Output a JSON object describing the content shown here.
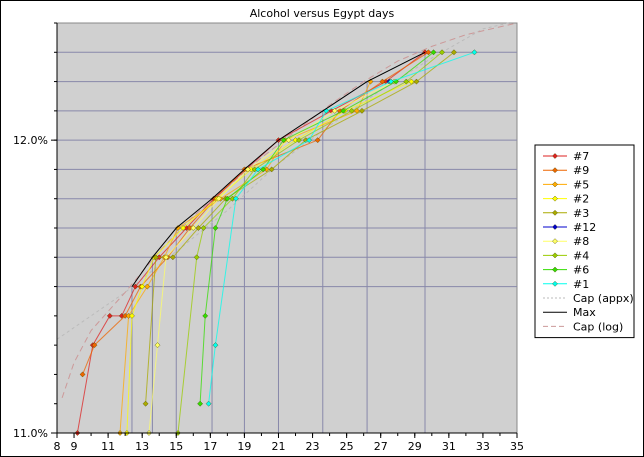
{
  "chart_data": {
    "type": "line",
    "title": "Alcohol versus Egypt days",
    "xlabel": "",
    "ylabel": "",
    "xlim": [
      8,
      35
    ],
    "ylim": [
      11.0,
      12.4
    ],
    "x_ticks": [
      {
        "v": 8,
        "label": "8"
      },
      {
        "v": 9,
        "label": "9"
      },
      {
        "v": 11,
        "label": "11"
      },
      {
        "v": 13,
        "label": "13"
      },
      {
        "v": 15,
        "label": "15"
      },
      {
        "v": 17,
        "label": "17"
      },
      {
        "v": 19,
        "label": "19"
      },
      {
        "v": 21,
        "label": "21"
      },
      {
        "v": 23,
        "label": "23"
      },
      {
        "v": 25,
        "label": "25"
      },
      {
        "v": 27,
        "label": "27"
      },
      {
        "v": 29,
        "label": "29"
      },
      {
        "v": 31,
        "label": "31"
      },
      {
        "v": 33,
        "label": "33"
      },
      {
        "v": 35,
        "label": "35"
      }
    ],
    "y_ticks": [
      {
        "v": 11.0,
        "label": "11.0%"
      },
      {
        "v": 12.0,
        "label": "12.0%"
      }
    ],
    "plot_background": "#d0d0d0",
    "grid": false,
    "legend_position": "right",
    "max_line": {
      "name": "Max",
      "color": "#000000",
      "points": [
        [
          12.4,
          11.5
        ],
        [
          13.6,
          11.6
        ],
        [
          15.0,
          11.7
        ],
        [
          17.1,
          11.8
        ],
        [
          19.0,
          11.9
        ],
        [
          21.0,
          12.0
        ],
        [
          23.6,
          12.1
        ],
        [
          26.2,
          12.2
        ],
        [
          29.6,
          12.3
        ]
      ]
    },
    "guide_lines": {
      "color": "#8888aa",
      "points": [
        [
          12.4,
          11.5
        ],
        [
          13.6,
          11.6
        ],
        [
          15.0,
          11.7
        ],
        [
          17.1,
          11.8
        ],
        [
          19.0,
          11.9
        ],
        [
          21.0,
          12.0
        ],
        [
          23.6,
          12.1
        ],
        [
          26.2,
          12.2
        ],
        [
          29.6,
          12.3
        ]
      ],
      "y_levels": [
        11.5,
        11.6,
        11.7,
        11.8,
        11.9,
        12.0,
        12.1,
        12.2,
        12.3
      ]
    },
    "cap_appx": {
      "name": "Cap (appx)",
      "color": "#bbbbbb",
      "points": [
        [
          8.0,
          11.32
        ],
        [
          12.0,
          11.48
        ],
        [
          15.0,
          11.62
        ],
        [
          18.0,
          11.76
        ],
        [
          21.0,
          11.92
        ],
        [
          24.0,
          12.05
        ],
        [
          27.0,
          12.17
        ],
        [
          30.0,
          12.28
        ],
        [
          33.0,
          12.38
        ],
        [
          34.5,
          12.43
        ]
      ]
    },
    "cap_log": {
      "name": "Cap (log)",
      "color": "#cc9999",
      "points": [
        [
          8.3,
          11.12
        ],
        [
          9.0,
          11.24
        ],
        [
          10.0,
          11.35
        ],
        [
          12.0,
          11.48
        ],
        [
          14.0,
          11.62
        ],
        [
          16.0,
          11.74
        ],
        [
          18.0,
          11.84
        ],
        [
          20.0,
          11.94
        ],
        [
          22.0,
          12.03
        ],
        [
          24.0,
          12.12
        ],
        [
          26.0,
          12.2
        ],
        [
          28.0,
          12.27
        ],
        [
          30.0,
          12.32
        ],
        [
          32.0,
          12.36
        ],
        [
          35.0,
          12.46
        ]
      ]
    },
    "series": [
      {
        "name": "#7",
        "color": "#dd2222",
        "marker": "diamond",
        "points": [
          [
            9.2,
            11.0
          ],
          [
            10.1,
            11.3
          ],
          [
            11.1,
            11.4
          ],
          [
            11.8,
            11.4
          ],
          [
            12.6,
            11.5
          ],
          [
            14.0,
            11.6
          ],
          [
            15.6,
            11.7
          ],
          [
            17.2,
            11.8
          ],
          [
            19.1,
            11.9
          ],
          [
            21.0,
            12.0
          ],
          [
            24.1,
            12.1
          ],
          [
            27.3,
            12.2
          ],
          [
            29.6,
            12.3
          ]
        ]
      },
      {
        "name": "#9",
        "color": "#ee6600",
        "marker": "diamond",
        "points": [
          [
            9.5,
            11.2
          ],
          [
            10.2,
            11.3
          ],
          [
            12.0,
            11.4
          ],
          [
            12.9,
            11.5
          ],
          [
            14.5,
            11.6
          ],
          [
            15.8,
            11.7
          ],
          [
            17.3,
            11.8
          ],
          [
            19.0,
            11.9
          ],
          [
            23.3,
            12.0
          ],
          [
            24.6,
            12.1
          ],
          [
            27.1,
            12.2
          ],
          [
            29.8,
            12.3
          ]
        ]
      },
      {
        "name": "#5",
        "color": "#ffaa00",
        "marker": "diamond",
        "points": [
          [
            11.7,
            11.0
          ],
          [
            12.2,
            11.4
          ],
          [
            13.3,
            11.5
          ],
          [
            14.3,
            11.6
          ],
          [
            15.1,
            11.7
          ],
          [
            17.6,
            11.8
          ],
          [
            20.3,
            11.9
          ],
          [
            21.4,
            12.0
          ],
          [
            25.6,
            12.1
          ],
          [
            26.4,
            12.2
          ]
        ]
      },
      {
        "name": "#2",
        "color": "#ffff00",
        "marker": "diamond",
        "points": [
          [
            12.1,
            11.0
          ],
          [
            12.4,
            11.4
          ],
          [
            13.0,
            11.5
          ],
          [
            13.7,
            11.6
          ],
          [
            15.4,
            11.7
          ],
          [
            17.4,
            11.8
          ],
          [
            19.4,
            11.9
          ],
          [
            22.0,
            12.0
          ],
          [
            24.9,
            12.1
          ],
          [
            28.8,
            12.2
          ]
        ]
      },
      {
        "name": "#3",
        "color": "#aaaa00",
        "marker": "diamond",
        "points": [
          [
            13.2,
            11.1
          ],
          [
            13.8,
            11.6
          ],
          [
            14.8,
            11.6
          ],
          [
            16.3,
            11.7
          ],
          [
            17.9,
            11.8
          ],
          [
            20.6,
            11.9
          ],
          [
            22.6,
            12.0
          ],
          [
            25.9,
            12.1
          ],
          [
            29.1,
            12.2
          ],
          [
            31.3,
            12.3
          ]
        ]
      },
      {
        "name": "#12",
        "color": "#0000cc",
        "marker": "diamond",
        "points": [
          [
            27.5,
            12.2
          ]
        ]
      },
      {
        "name": "#8",
        "color": "#ffff66",
        "marker": "diamond",
        "points": [
          [
            13.4,
            11.0
          ],
          [
            13.9,
            11.3
          ],
          [
            14.4,
            11.6
          ],
          [
            16.0,
            11.7
          ],
          [
            17.5,
            11.8
          ],
          [
            19.2,
            11.9
          ],
          [
            21.6,
            12.0
          ],
          [
            24.3,
            12.1
          ],
          [
            27.8,
            12.2
          ]
        ]
      },
      {
        "name": "#4",
        "color": "#99cc00",
        "marker": "diamond",
        "points": [
          [
            15.1,
            11.0
          ],
          [
            16.2,
            11.6
          ],
          [
            16.6,
            11.7
          ],
          [
            18.3,
            11.8
          ],
          [
            19.6,
            11.9
          ],
          [
            22.2,
            12.0
          ],
          [
            25.3,
            12.1
          ],
          [
            28.5,
            12.2
          ],
          [
            30.6,
            12.3
          ]
        ]
      },
      {
        "name": "#6",
        "color": "#33dd00",
        "marker": "diamond",
        "points": [
          [
            16.4,
            11.1
          ],
          [
            16.7,
            11.4
          ],
          [
            17.3,
            11.7
          ],
          [
            18.0,
            11.8
          ],
          [
            20.1,
            11.9
          ],
          [
            21.3,
            12.0
          ],
          [
            24.8,
            12.1
          ],
          [
            27.9,
            12.2
          ],
          [
            30.1,
            12.3
          ]
        ]
      },
      {
        "name": "#1",
        "color": "#00ffee",
        "marker": "diamond",
        "points": [
          [
            16.9,
            11.1
          ],
          [
            17.3,
            11.3
          ],
          [
            18.5,
            11.8
          ],
          [
            19.8,
            11.9
          ],
          [
            22.8,
            12.0
          ],
          [
            23.8,
            12.1
          ],
          [
            27.6,
            12.2
          ],
          [
            32.5,
            12.3
          ]
        ]
      }
    ]
  }
}
